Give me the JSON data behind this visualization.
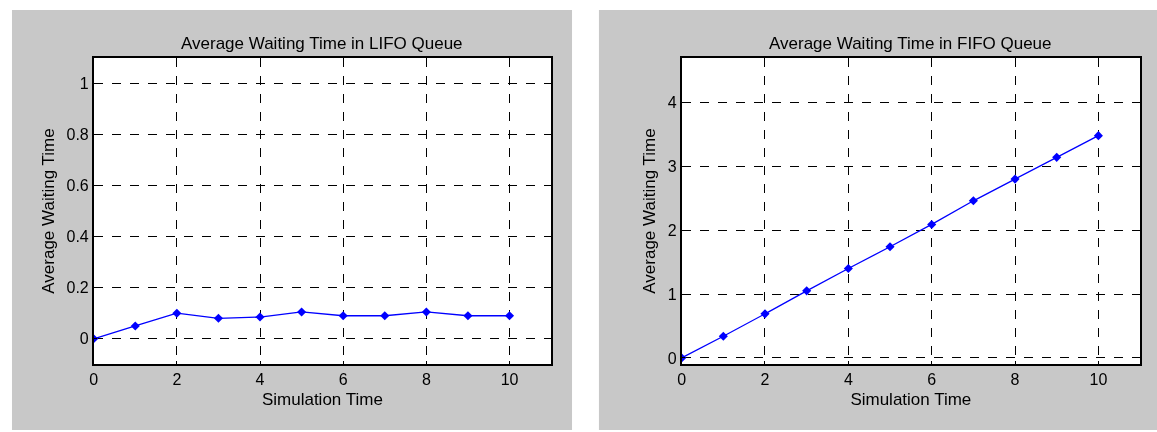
{
  "chart_data": [
    {
      "type": "line",
      "title": "Average Waiting Time in LIFO Queue",
      "xlabel": "Simulation Time",
      "ylabel": "Average Waiting Time",
      "x": [
        0,
        1,
        2,
        3,
        4,
        5,
        6,
        7,
        8,
        9,
        10
      ],
      "series": [
        {
          "color": "#0000ff",
          "values": [
            0,
            0.05,
            0.1,
            0.08,
            0.085,
            0.105,
            0.09,
            0.09,
            0.105,
            0.09,
            0.09
          ]
        }
      ],
      "xlim": [
        0,
        11
      ],
      "xticks": [
        0,
        2,
        4,
        6,
        8,
        10
      ],
      "ylim": [
        -0.1,
        1.1
      ],
      "yticks": [
        0,
        0.2,
        0.4,
        0.6,
        0.8,
        1
      ],
      "grid": true,
      "marker": "diamond",
      "line_style": "solid"
    },
    {
      "type": "line",
      "title": "Average Waiting Time in FIFO Queue",
      "xlabel": "Simulation Time",
      "ylabel": "Average Waiting Time",
      "x": [
        0,
        1,
        2,
        3,
        4,
        5,
        6,
        7,
        8,
        9,
        10
      ],
      "series": [
        {
          "color": "#0000ff",
          "values": [
            0,
            0.34,
            0.69,
            1.05,
            1.4,
            1.74,
            2.09,
            2.46,
            2.8,
            3.14,
            3.48
          ]
        }
      ],
      "xlim": [
        0,
        11
      ],
      "xticks": [
        0,
        2,
        4,
        6,
        8,
        10
      ],
      "ylim": [
        -0.1,
        4.7
      ],
      "yticks": [
        0,
        1,
        2,
        3,
        4
      ],
      "grid": true,
      "marker": "diamond",
      "line_style": "solid"
    }
  ]
}
